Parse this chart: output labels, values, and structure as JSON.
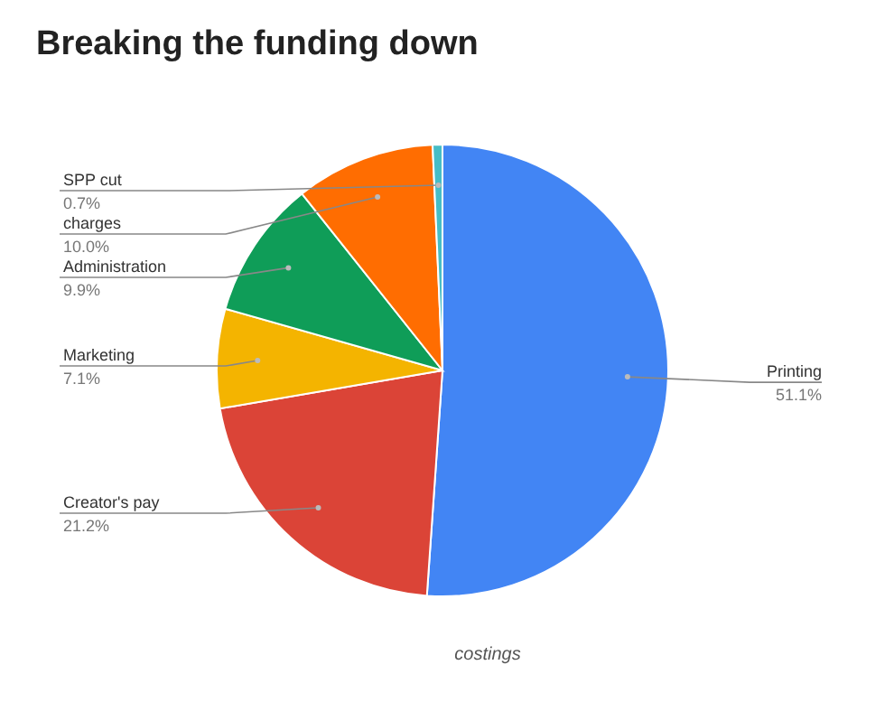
{
  "chart_data": {
    "type": "pie",
    "title": "Breaking the funding down",
    "categories": [
      "Printing",
      "Creator's pay",
      "Marketing",
      "Administration",
      "charges",
      "SPP cut"
    ],
    "values": [
      51.1,
      21.2,
      7.1,
      9.9,
      10.0,
      0.7
    ],
    "value_labels": [
      "51.1%",
      "21.2%",
      "7.1%",
      "9.9%",
      "10.0%",
      "0.7%"
    ],
    "colors": [
      "#4285f4",
      "#db4437",
      "#f4b400",
      "#0f9d58",
      "#ff6d01",
      "#46bdc6"
    ],
    "annotations": [
      "costings"
    ],
    "legend": false
  }
}
